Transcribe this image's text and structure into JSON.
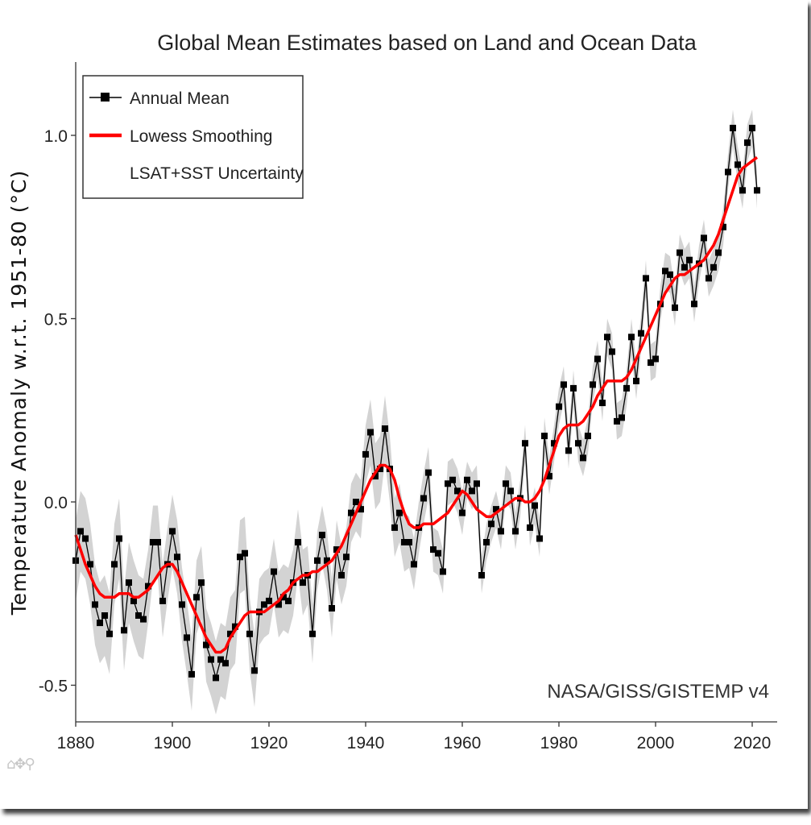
{
  "chart_data": {
    "type": "line",
    "title": "Global Mean Estimates based on Land and Ocean Data",
    "ylabel": "Temperature Anomaly w.r.t. 1951-80 (°C)",
    "xlabel": "",
    "xlim": [
      1880,
      2021
    ],
    "ylim": [
      -0.6,
      1.2
    ],
    "x_ticks": [
      1880,
      1900,
      1920,
      1940,
      1960,
      1980,
      2000,
      2020
    ],
    "y_ticks": [
      -0.5,
      0.0,
      0.5,
      1.0
    ],
    "y_tick_labels": [
      "-0.5",
      "0.0",
      "0.5",
      "1.0"
    ],
    "legend": {
      "position": "top-left",
      "entries": [
        "Annual Mean",
        "Lowess Smoothing",
        "LSAT+SST Uncertainty"
      ]
    },
    "annotation": "NASA/GISS/GISTEMP v4",
    "colors": {
      "annual": "#000000",
      "lowess": "#ff0000",
      "uncertainty": "#d3d3d3"
    },
    "x": [
      1880,
      1881,
      1882,
      1883,
      1884,
      1885,
      1886,
      1887,
      1888,
      1889,
      1890,
      1891,
      1892,
      1893,
      1894,
      1895,
      1896,
      1897,
      1898,
      1899,
      1900,
      1901,
      1902,
      1903,
      1904,
      1905,
      1906,
      1907,
      1908,
      1909,
      1910,
      1911,
      1912,
      1913,
      1914,
      1915,
      1916,
      1917,
      1918,
      1919,
      1920,
      1921,
      1922,
      1923,
      1924,
      1925,
      1926,
      1927,
      1928,
      1929,
      1930,
      1931,
      1932,
      1933,
      1934,
      1935,
      1936,
      1937,
      1938,
      1939,
      1940,
      1941,
      1942,
      1943,
      1944,
      1945,
      1946,
      1947,
      1948,
      1949,
      1950,
      1951,
      1952,
      1953,
      1954,
      1955,
      1956,
      1957,
      1958,
      1959,
      1960,
      1961,
      1962,
      1963,
      1964,
      1965,
      1966,
      1967,
      1968,
      1969,
      1970,
      1971,
      1972,
      1973,
      1974,
      1975,
      1976,
      1977,
      1978,
      1979,
      1980,
      1981,
      1982,
      1983,
      1984,
      1985,
      1986,
      1987,
      1988,
      1989,
      1990,
      1991,
      1992,
      1993,
      1994,
      1995,
      1996,
      1997,
      1998,
      1999,
      2000,
      2001,
      2002,
      2003,
      2004,
      2005,
      2006,
      2007,
      2008,
      2009,
      2010,
      2011,
      2012,
      2013,
      2014,
      2015,
      2016,
      2017,
      2018,
      2019,
      2020,
      2021
    ],
    "series": [
      {
        "name": "Annual Mean",
        "values": [
          -0.16,
          -0.08,
          -0.1,
          -0.17,
          -0.28,
          -0.33,
          -0.31,
          -0.36,
          -0.17,
          -0.1,
          -0.35,
          -0.22,
          -0.27,
          -0.31,
          -0.32,
          -0.23,
          -0.11,
          -0.11,
          -0.27,
          -0.17,
          -0.08,
          -0.15,
          -0.28,
          -0.37,
          -0.47,
          -0.26,
          -0.22,
          -0.39,
          -0.43,
          -0.48,
          -0.43,
          -0.44,
          -0.36,
          -0.34,
          -0.15,
          -0.14,
          -0.36,
          -0.46,
          -0.3,
          -0.28,
          -0.27,
          -0.19,
          -0.28,
          -0.26,
          -0.27,
          -0.22,
          -0.11,
          -0.22,
          -0.2,
          -0.36,
          -0.16,
          -0.09,
          -0.16,
          -0.29,
          -0.13,
          -0.2,
          -0.15,
          -0.03,
          0.0,
          -0.02,
          0.13,
          0.19,
          0.07,
          0.09,
          0.2,
          0.09,
          -0.07,
          -0.03,
          -0.11,
          -0.11,
          -0.17,
          -0.07,
          0.01,
          0.08,
          -0.13,
          -0.14,
          -0.19,
          0.05,
          0.06,
          0.03,
          -0.03,
          0.06,
          0.03,
          0.05,
          -0.2,
          -0.11,
          -0.06,
          -0.02,
          -0.08,
          0.05,
          0.03,
          -0.08,
          0.01,
          0.16,
          -0.07,
          -0.01,
          -0.1,
          0.18,
          0.07,
          0.16,
          0.26,
          0.32,
          0.14,
          0.31,
          0.16,
          0.12,
          0.18,
          0.32,
          0.39,
          0.27,
          0.45,
          0.41,
          0.22,
          0.23,
          0.31,
          0.45,
          0.33,
          0.46,
          0.61,
          0.38,
          0.39,
          0.54,
          0.63,
          0.62,
          0.53,
          0.68,
          0.64,
          0.66,
          0.54,
          0.65,
          0.72,
          0.61,
          0.64,
          0.68,
          0.75,
          0.9,
          1.02,
          0.92,
          0.85,
          0.98,
          1.02,
          0.85
        ]
      },
      {
        "name": "Lowess Smoothing",
        "values": [
          -0.09,
          -0.13,
          -0.17,
          -0.2,
          -0.23,
          -0.25,
          -0.26,
          -0.26,
          -0.26,
          -0.25,
          -0.25,
          -0.25,
          -0.26,
          -0.26,
          -0.25,
          -0.24,
          -0.22,
          -0.2,
          -0.18,
          -0.17,
          -0.17,
          -0.19,
          -0.22,
          -0.25,
          -0.28,
          -0.31,
          -0.34,
          -0.37,
          -0.39,
          -0.41,
          -0.41,
          -0.4,
          -0.37,
          -0.35,
          -0.33,
          -0.31,
          -0.3,
          -0.3,
          -0.3,
          -0.3,
          -0.29,
          -0.28,
          -0.27,
          -0.25,
          -0.24,
          -0.22,
          -0.21,
          -0.2,
          -0.2,
          -0.19,
          -0.19,
          -0.18,
          -0.17,
          -0.16,
          -0.14,
          -0.12,
          -0.09,
          -0.06,
          -0.03,
          0.0,
          0.03,
          0.06,
          0.08,
          0.1,
          0.1,
          0.09,
          0.06,
          0.01,
          -0.03,
          -0.06,
          -0.07,
          -0.07,
          -0.06,
          -0.06,
          -0.06,
          -0.05,
          -0.04,
          -0.03,
          -0.01,
          0.01,
          0.03,
          0.02,
          0.0,
          -0.02,
          -0.03,
          -0.04,
          -0.04,
          -0.03,
          -0.02,
          -0.01,
          0.0,
          0.01,
          0.01,
          0.0,
          0.0,
          0.01,
          0.03,
          0.06,
          0.1,
          0.14,
          0.18,
          0.2,
          0.21,
          0.21,
          0.21,
          0.22,
          0.24,
          0.26,
          0.29,
          0.31,
          0.33,
          0.33,
          0.33,
          0.33,
          0.34,
          0.36,
          0.39,
          0.42,
          0.45,
          0.48,
          0.51,
          0.54,
          0.57,
          0.59,
          0.61,
          0.62,
          0.62,
          0.63,
          0.64,
          0.65,
          0.66,
          0.68,
          0.7,
          0.73,
          0.77,
          0.81,
          0.85,
          0.89,
          0.91,
          0.92,
          0.93,
          0.94
        ]
      },
      {
        "name": "LSAT+SST Uncertainty",
        "values": [
          0.11,
          0.11,
          0.11,
          0.11,
          0.11,
          0.11,
          0.11,
          0.11,
          0.11,
          0.11,
          0.11,
          0.11,
          0.11,
          0.11,
          0.11,
          0.1,
          0.1,
          0.1,
          0.1,
          0.1,
          0.1,
          0.1,
          0.1,
          0.1,
          0.1,
          0.1,
          0.1,
          0.1,
          0.1,
          0.1,
          0.1,
          0.1,
          0.1,
          0.1,
          0.1,
          0.1,
          0.1,
          0.1,
          0.09,
          0.09,
          0.09,
          0.09,
          0.09,
          0.09,
          0.09,
          0.09,
          0.09,
          0.09,
          0.08,
          0.08,
          0.08,
          0.08,
          0.08,
          0.08,
          0.08,
          0.08,
          0.08,
          0.08,
          0.08,
          0.08,
          0.08,
          0.09,
          0.09,
          0.09,
          0.09,
          0.09,
          0.08,
          0.08,
          0.08,
          0.07,
          0.07,
          0.07,
          0.07,
          0.07,
          0.06,
          0.06,
          0.06,
          0.06,
          0.06,
          0.06,
          0.06,
          0.05,
          0.05,
          0.05,
          0.05,
          0.05,
          0.05,
          0.05,
          0.05,
          0.05,
          0.05,
          0.05,
          0.05,
          0.05,
          0.05,
          0.05,
          0.05,
          0.05,
          0.05,
          0.05,
          0.05,
          0.05,
          0.05,
          0.05,
          0.05,
          0.05,
          0.05,
          0.05,
          0.05,
          0.05,
          0.05,
          0.05,
          0.05,
          0.05,
          0.05,
          0.05,
          0.05,
          0.05,
          0.05,
          0.05,
          0.05,
          0.05,
          0.05,
          0.05,
          0.05,
          0.05,
          0.05,
          0.05,
          0.05,
          0.05,
          0.05,
          0.05,
          0.05,
          0.05,
          0.05,
          0.05,
          0.05,
          0.05,
          0.05,
          0.05,
          0.05,
          0.05
        ]
      }
    ]
  },
  "toolbar": {
    "home_icon": "home-icon",
    "pan_icon": "pan-icon",
    "zoom_icon": "zoom-icon"
  }
}
